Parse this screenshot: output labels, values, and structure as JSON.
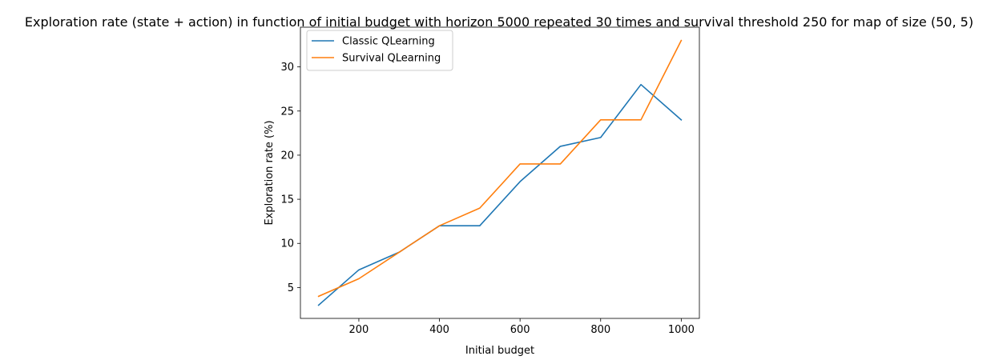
{
  "chart_data": {
    "type": "line",
    "title": "Exploration rate (state + action) in function of initial budget with horizon 5000 repeated 30 times and survival threshold 250 for map of size (50, 5)",
    "xlabel": "Initial budget",
    "ylabel": "Exploration rate (%)",
    "x": [
      100,
      200,
      300,
      400,
      500,
      600,
      700,
      800,
      900,
      1000
    ],
    "xlim": [
      55,
      1045
    ],
    "ylim": [
      1.5,
      34.5
    ],
    "xticks": [
      200,
      400,
      600,
      800,
      1000
    ],
    "yticks": [
      5,
      10,
      15,
      20,
      25,
      30
    ],
    "grid": false,
    "legend_position": "upper-left",
    "series": [
      {
        "name": "Classic QLearning",
        "color": "#1f77b4",
        "values": [
          3,
          7,
          9,
          12,
          12,
          17,
          21,
          22,
          28,
          24
        ]
      },
      {
        "name": "Survival QLearning",
        "color": "#ff7f0e",
        "values": [
          4,
          6,
          9,
          12,
          14,
          19,
          19,
          24,
          24,
          33
        ]
      }
    ]
  }
}
